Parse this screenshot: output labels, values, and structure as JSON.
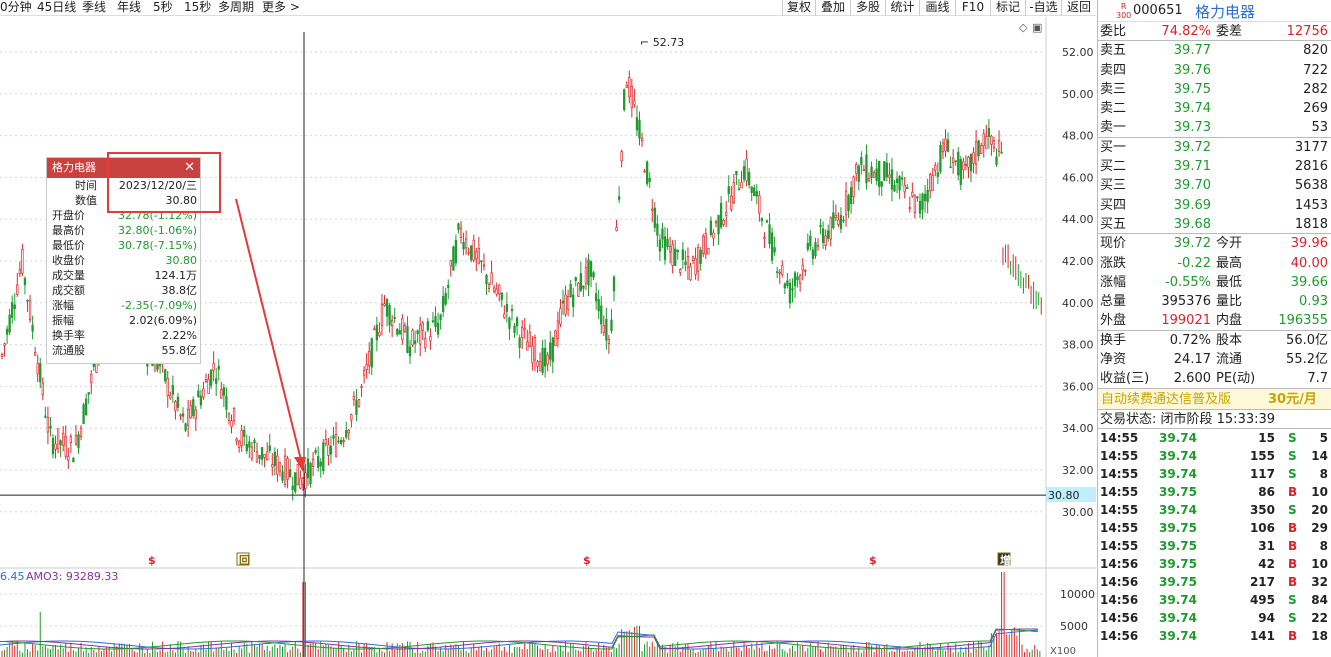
{
  "toolbar": {
    "periods": [
      "0分钟",
      "45日线",
      "季线",
      "年线",
      "5秒",
      "15秒",
      "多周期",
      "更多 >"
    ],
    "buttons": [
      "复权",
      "叠加",
      "多股",
      "统计",
      "画线",
      "F10",
      "标记",
      "-自选",
      "返回"
    ]
  },
  "chart": {
    "y_ticks": [
      "52.00",
      "50.00",
      "48.00",
      "46.00",
      "44.00",
      "42.00",
      "40.00",
      "38.00",
      "36.00",
      "34.00",
      "32.00",
      "30.00"
    ],
    "peak_label": "52.73",
    "crosshair_price": "30.80",
    "marks": [
      "$",
      "回",
      "$",
      "$",
      "增"
    ],
    "volume_label_left": "6.45",
    "volume_label": "AMO3: 93289.33",
    "vol_ticks": [
      "10000",
      "5000"
    ],
    "vol_unit": "X100"
  },
  "tooltip": {
    "title": "格力电器",
    "close_icon": "✕",
    "rows": [
      {
        "k": "时间",
        "v": "2023/12/20/三",
        "c": "b"
      },
      {
        "k": "数值",
        "v": "30.80",
        "c": "b"
      },
      {
        "k": "开盘价",
        "v": "32.78(-1.12%)",
        "c": "g"
      },
      {
        "k": "最高价",
        "v": "32.80(-1.06%)",
        "c": "g"
      },
      {
        "k": "最低价",
        "v": "30.78(-7.15%)",
        "c": "g"
      },
      {
        "k": "收盘价",
        "v": "30.80",
        "c": "g"
      },
      {
        "k": "成交量",
        "v": "124.1万",
        "c": "b"
      },
      {
        "k": "成交额",
        "v": "38.8亿",
        "c": "b"
      },
      {
        "k": "涨幅",
        "v": "-2.35(-7.09%)",
        "c": "g"
      },
      {
        "k": "振幅",
        "v": "2.02(6.09%)",
        "c": "b"
      },
      {
        "k": "换手率",
        "v": "2.22%",
        "c": "b"
      },
      {
        "k": "流通股",
        "v": "55.8亿",
        "c": "b"
      }
    ]
  },
  "quote": {
    "index_tag": "R\n300",
    "code": "000651",
    "name": "格力电器",
    "weibi": {
      "k1": "委比",
      "v1": "74.82%",
      "k2": "委差",
      "v2": "12756"
    },
    "sell": [
      {
        "k": "卖五",
        "p": "39.77",
        "q": "820"
      },
      {
        "k": "卖四",
        "p": "39.76",
        "q": "722"
      },
      {
        "k": "卖三",
        "p": "39.75",
        "q": "282"
      },
      {
        "k": "卖二",
        "p": "39.74",
        "q": "269"
      },
      {
        "k": "卖一",
        "p": "39.73",
        "q": "53"
      }
    ],
    "buy": [
      {
        "k": "买一",
        "p": "39.72",
        "q": "3177"
      },
      {
        "k": "买二",
        "p": "39.71",
        "q": "2816"
      },
      {
        "k": "买三",
        "p": "39.70",
        "q": "5638"
      },
      {
        "k": "买四",
        "p": "39.69",
        "q": "1453"
      },
      {
        "k": "买五",
        "p": "39.68",
        "q": "1818"
      }
    ],
    "stats1": [
      {
        "k1": "现价",
        "v1": "39.72",
        "c1": "g",
        "k2": "今开",
        "v2": "39.96",
        "c2": "r"
      },
      {
        "k1": "涨跌",
        "v1": "-0.22",
        "c1": "g",
        "k2": "最高",
        "v2": "40.00",
        "c2": "r"
      },
      {
        "k1": "涨幅",
        "v1": "-0.55%",
        "c1": "g",
        "k2": "最低",
        "v2": "39.66",
        "c2": "g"
      },
      {
        "k1": "总量",
        "v1": "395376",
        "c1": "b",
        "k2": "量比",
        "v2": "0.93",
        "c2": "g"
      },
      {
        "k1": "外盘",
        "v1": "199021",
        "c1": "r",
        "k2": "内盘",
        "v2": "196355",
        "c2": "g"
      }
    ],
    "stats2": [
      {
        "k1": "换手",
        "v1": "0.72%",
        "k2": "股本",
        "v2": "56.0亿"
      },
      {
        "k1": "净资",
        "v1": "24.17",
        "k2": "流通",
        "v2": "55.2亿"
      },
      {
        "k1": "收益(三)",
        "v1": "2.600",
        "k2": "PE(动)",
        "v2": "7.7"
      }
    ],
    "promo": "自动续费通达信普及版",
    "promo_price": "30元/月",
    "trade_status": "交易状态: 闭市阶段 15:33:39",
    "ticks": [
      {
        "t": "14:55",
        "p": "39.74",
        "v": "15",
        "s": "S",
        "n": "5"
      },
      {
        "t": "14:55",
        "p": "39.74",
        "v": "155",
        "s": "S",
        "n": "14"
      },
      {
        "t": "14:55",
        "p": "39.74",
        "v": "117",
        "s": "S",
        "n": "8"
      },
      {
        "t": "14:55",
        "p": "39.75",
        "v": "86",
        "s": "B",
        "n": "10"
      },
      {
        "t": "14:55",
        "p": "39.74",
        "v": "350",
        "s": "S",
        "n": "20"
      },
      {
        "t": "14:55",
        "p": "39.75",
        "v": "106",
        "s": "B",
        "n": "29"
      },
      {
        "t": "14:55",
        "p": "39.75",
        "v": "31",
        "s": "B",
        "n": "8"
      },
      {
        "t": "14:56",
        "p": "39.75",
        "v": "42",
        "s": "B",
        "n": "10"
      },
      {
        "t": "14:56",
        "p": "39.75",
        "v": "217",
        "s": "B",
        "n": "32"
      },
      {
        "t": "14:56",
        "p": "39.74",
        "v": "495",
        "s": "S",
        "n": "84"
      },
      {
        "t": "14:56",
        "p": "39.74",
        "v": "94",
        "s": "S",
        "n": "22"
      },
      {
        "t": "14:56",
        "p": "39.74",
        "v": "141",
        "s": "B",
        "n": "18"
      }
    ]
  },
  "colors": {
    "up": "#e0262b",
    "down": "#1e9a2e",
    "accent": "#c9423f"
  }
}
